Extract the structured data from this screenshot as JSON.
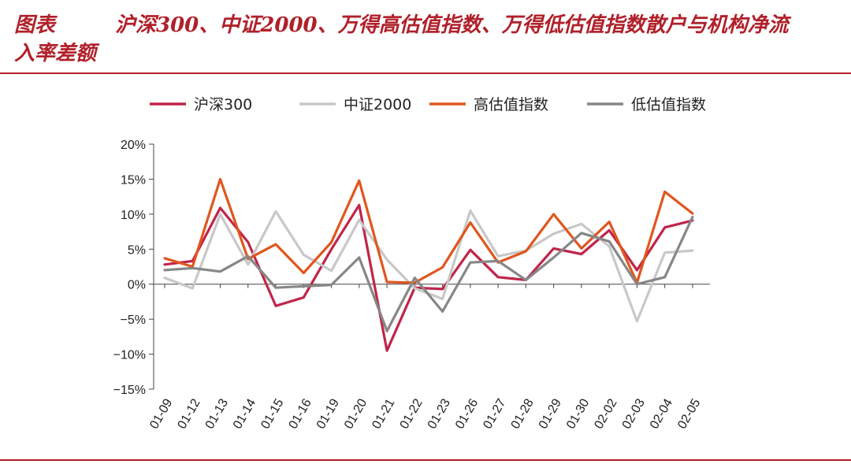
{
  "title": {
    "label": "图表",
    "line1": "沪深300、中证2000、万得高估值指数、万得低估值指数散户与机构净流",
    "line2": "入率差额"
  },
  "chart_data": {
    "type": "line",
    "categories": [
      "01-09",
      "01-12",
      "01-13",
      "01-14",
      "01-15",
      "01-16",
      "01-19",
      "01-20",
      "01-21",
      "01-22",
      "01-23",
      "01-26",
      "01-27",
      "01-28",
      "01-29",
      "01-30",
      "02-02",
      "02-03",
      "02-04",
      "02-05"
    ],
    "ylim": [
      -15,
      20
    ],
    "yticks": [
      -15,
      -10,
      -5,
      0,
      5,
      10,
      15,
      20
    ],
    "ytick_labels": [
      "−15%",
      "−10%",
      "−5%",
      "0%",
      "5%",
      "10%",
      "15%",
      "20%"
    ],
    "legend_position": "top",
    "grid": false,
    "series": [
      {
        "name": "沪深300",
        "color": "#c0254a",
        "values": [
          2.8,
          3.3,
          10.9,
          6.0,
          -3.1,
          -1.9,
          5.0,
          11.3,
          -9.5,
          -0.5,
          -0.7,
          4.9,
          1.0,
          0.6,
          5.1,
          4.3,
          7.7,
          2.0,
          8.1,
          9.1
        ]
      },
      {
        "name": "中证2000",
        "color": "#c8c8c8",
        "values": [
          0.9,
          -0.6,
          10.0,
          2.8,
          10.4,
          4.2,
          1.9,
          9.2,
          3.5,
          -0.6,
          -2.1,
          10.5,
          4.0,
          4.8,
          7.2,
          8.6,
          5.4,
          -5.3,
          4.5,
          4.8
        ]
      },
      {
        "name": "高估值指数",
        "color": "#e0561e",
        "values": [
          3.7,
          2.5,
          15.0,
          3.6,
          5.7,
          1.6,
          6.0,
          14.8,
          0.3,
          0.2,
          2.4,
          8.8,
          3.1,
          4.7,
          10.0,
          5.1,
          8.9,
          0.2,
          13.2,
          10.1
        ]
      },
      {
        "name": "低估值指数",
        "color": "#878787",
        "values": [
          2.0,
          2.3,
          1.8,
          4.0,
          -0.5,
          -0.3,
          -0.1,
          3.8,
          -6.7,
          0.9,
          -3.9,
          3.1,
          3.3,
          0.6,
          3.8,
          7.3,
          6.1,
          0.0,
          1.0,
          9.6
        ]
      }
    ]
  }
}
